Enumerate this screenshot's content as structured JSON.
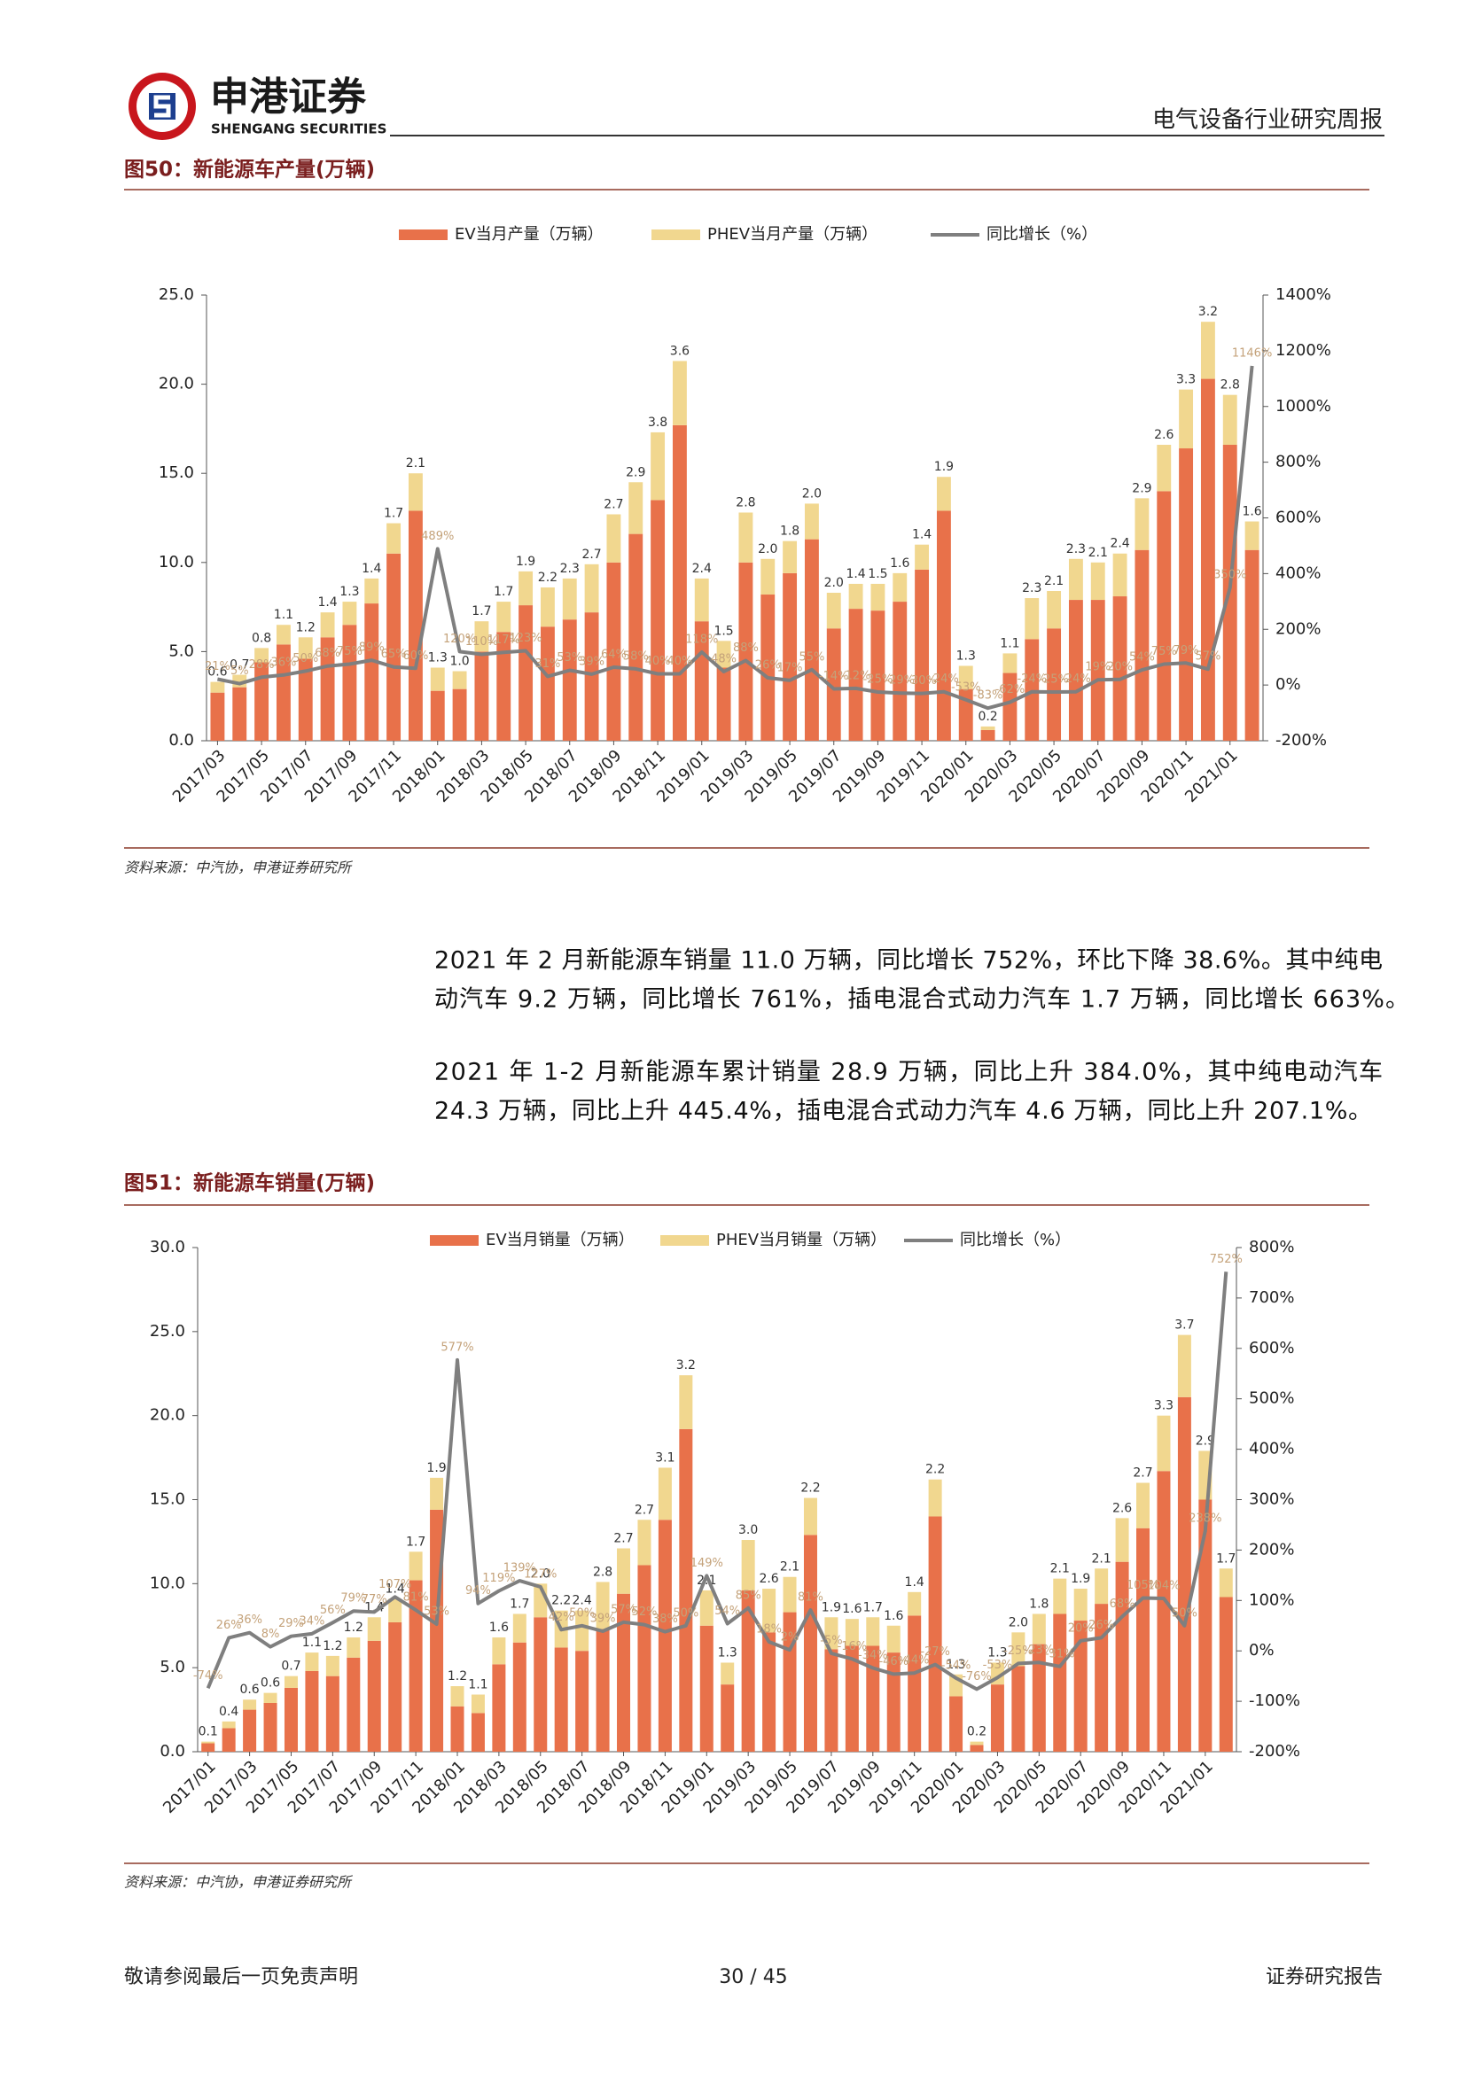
{
  "header": {
    "brand": "申港证券",
    "brand_en": "SHENGANG SECURITIES",
    "report_type": "电气设备行业研究周报"
  },
  "paragraphs": [
    [
      "2021 年 2 月新能源车销量 11.0 万辆，同比增长 752%，环比下降 38.6%。其中纯电",
      "动汽车 9.2 万辆，同比增长 761%，插电混合式动力汽车 1.7 万辆，同比增长 663%。"
    ],
    [
      "2021 年 1-2 月新能源车累计销量 28.9 万辆，同比上升 384.0%，其中纯电动汽车",
      "24.3 万辆，同比上升 445.4%，插电混合式动力汽车 4.6 万辆，同比上升 207.1%。"
    ]
  ],
  "footer": {
    "disclaimer": "敬请参阅最后一页免责声明",
    "page": "30 / 45",
    "doc_type": "证券研究报告"
  },
  "chart_data": [
    {
      "type": "stacked_bar_line",
      "title": "图50：新能源车产量(万辆)",
      "source": "资料来源：中汽协，申港证券研究所",
      "categories": [
        "2017/03",
        null,
        "2017/05",
        null,
        "2017/07",
        null,
        "2017/09",
        null,
        "2017/11",
        null,
        "2018/01",
        null,
        "2018/03",
        null,
        "2018/05",
        null,
        "2018/07",
        null,
        "2018/09",
        null,
        "2018/11",
        null,
        "2019/01",
        null,
        "2019/03",
        null,
        "2019/05",
        null,
        "2019/07",
        null,
        "2019/09",
        null,
        "2019/11",
        null,
        "2020/01",
        null,
        "2020/03",
        null,
        "2020/05",
        null,
        "2020/07",
        null,
        "2020/09",
        null,
        "2020/11",
        null,
        "2021/01",
        null
      ],
      "series": [
        {
          "name": "EV当月产量（万辆）",
          "color": "#e8714a",
          "values": [
            2.7,
            3.0,
            4.4,
            5.4,
            4.6,
            5.8,
            6.5,
            7.7,
            10.5,
            12.9,
            2.8,
            2.9,
            5.0,
            6.1,
            7.6,
            6.4,
            6.8,
            7.2,
            10.0,
            11.6,
            13.5,
            17.7,
            6.7,
            4.1,
            10.0,
            8.2,
            9.4,
            11.3,
            6.3,
            7.4,
            7.3,
            7.8,
            9.6,
            12.9,
            2.9,
            0.6,
            3.8,
            5.7,
            6.3,
            7.9,
            7.9,
            8.1,
            10.7,
            14.0,
            16.4,
            20.3,
            16.6,
            10.7
          ]
        },
        {
          "name": "PHEV当月产量（万辆）",
          "color": "#f1d78f",
          "values": [
            0.6,
            0.7,
            0.8,
            1.1,
            1.2,
            1.4,
            1.3,
            1.4,
            1.7,
            2.1,
            1.3,
            1.0,
            1.7,
            1.7,
            1.9,
            2.2,
            2.3,
            2.7,
            2.7,
            2.9,
            3.8,
            3.6,
            2.4,
            1.5,
            2.8,
            2.0,
            1.8,
            2.0,
            2.0,
            1.4,
            1.5,
            1.6,
            1.4,
            1.9,
            1.3,
            0.2,
            1.1,
            2.3,
            2.1,
            2.3,
            2.1,
            2.4,
            2.9,
            2.6,
            3.3,
            3.2,
            2.8,
            1.6
          ],
          "value_labels": [
            "0.6",
            "0.7",
            "0.8",
            "1.1",
            "1.2",
            "1.4",
            "1.3",
            "1.4",
            "1.7",
            "2.1",
            "1.3",
            "1.0",
            "1.7",
            "1.7",
            "1.9",
            "2.2",
            "2.3",
            "2.7",
            "2.7",
            "2.9",
            "3.8",
            "3.6",
            "2.4",
            "1.5",
            "2.8",
            "2.0",
            "1.8",
            "2.0",
            "2.0",
            "1.4",
            "1.5",
            "1.6",
            "1.4",
            "1.9",
            "1.3",
            "0.2",
            "1.1",
            "2.3",
            "2.1",
            "2.3",
            "2.1",
            "2.4",
            "2.9",
            "2.6",
            "3.3",
            "3.2",
            "2.8",
            "1.6"
          ]
        },
        {
          "name": "同比增长（%）",
          "color": "#7f7f7f",
          "axis": "y2",
          "values": [
            21,
            5,
            28,
            36,
            50,
            68,
            75,
            89,
            65,
            60,
            489,
            120,
            110,
            117,
            123,
            31,
            53,
            39,
            64,
            58,
            40,
            40,
            118,
            48,
            88,
            26,
            17,
            55,
            -14,
            -12,
            -25,
            -29,
            -30,
            -24,
            -53,
            -83,
            -62,
            -24,
            -25,
            -24,
            19,
            20,
            54,
            75,
            79,
            57,
            350,
            1146
          ],
          "value_labels": [
            "21%",
            "5%",
            "28%",
            "36%",
            "50%",
            "68%",
            "75%",
            "89%",
            "65%",
            "60%",
            "489%",
            "120%",
            "110%",
            "117%",
            "123%",
            "31%",
            "53%",
            "39%",
            "64%",
            "58%",
            "40%",
            "40%",
            "118%",
            "48%",
            "88%",
            "26%",
            "17%",
            "55%",
            "-14%",
            "-12%",
            "-25%",
            "-29%",
            "-30%",
            "-24%",
            "-53%",
            "-83%",
            "-62%",
            "-24%",
            "-25%",
            "-24%",
            "19%",
            "20%",
            "54%",
            "75%",
            "79%",
            "57%",
            "350%",
            "1146%"
          ]
        }
      ],
      "ylim": [
        0,
        25
      ],
      "yticks": [
        {
          "value": 0,
          "label": "0.0"
        },
        {
          "value": 5,
          "label": "5.0"
        },
        {
          "value": 10,
          "label": "10.0"
        },
        {
          "value": 15,
          "label": "15.0"
        },
        {
          "value": 20,
          "label": "20.0"
        },
        {
          "value": 25,
          "label": "25.0"
        }
      ],
      "y2lim": [
        -200,
        1400
      ],
      "y2ticks": [
        {
          "value": -200,
          "label": "-200%"
        },
        {
          "value": 0,
          "label": "0%"
        },
        {
          "value": 200,
          "label": "200%"
        },
        {
          "value": 400,
          "label": "400%"
        },
        {
          "value": 600,
          "label": "600%"
        },
        {
          "value": 800,
          "label": "800%"
        },
        {
          "value": 1000,
          "label": "1000%"
        },
        {
          "value": 1200,
          "label": "1200%"
        },
        {
          "value": 1400,
          "label": "1400%"
        }
      ],
      "legend": "top",
      "grid": false
    },
    {
      "type": "stacked_bar_line",
      "title": "图51：新能源车销量(万辆)",
      "source": "资料来源：中汽协，申港证券研究所",
      "categories": [
        "2017/01",
        null,
        "2017/03",
        null,
        "2017/05",
        null,
        "2017/07",
        null,
        "2017/09",
        null,
        "2017/11",
        null,
        "2018/01",
        null,
        "2018/03",
        null,
        "2018/05",
        null,
        "2018/07",
        null,
        "2018/09",
        null,
        "2018/11",
        null,
        "2019/01",
        null,
        "2019/03",
        null,
        "2019/05",
        null,
        "2019/07",
        null,
        "2019/09",
        null,
        "2019/11",
        null,
        "2020/01",
        null,
        "2020/03",
        null,
        "2020/05",
        null,
        "2020/07",
        null,
        "2020/09",
        null,
        "2020/11",
        null,
        "2021/01",
        null
      ],
      "series": [
        {
          "name": "EV当月销量（万辆）",
          "color": "#e8714a",
          "values": [
            0.5,
            1.4,
            2.5,
            2.9,
            3.8,
            4.8,
            4.5,
            5.6,
            6.6,
            7.7,
            10.2,
            14.4,
            2.7,
            2.3,
            5.2,
            6.5,
            8.0,
            6.2,
            6.0,
            7.3,
            9.4,
            11.1,
            13.8,
            19.2,
            7.5,
            4.0,
            9.6,
            7.1,
            8.3,
            12.9,
            6.1,
            6.3,
            6.3,
            5.9,
            8.1,
            14.0,
            3.3,
            0.4,
            4.0,
            5.1,
            6.4,
            8.2,
            7.8,
            8.8,
            11.3,
            13.3,
            16.7,
            21.1,
            15.0,
            9.2
          ]
        },
        {
          "name": "PHEV当月销量（万辆）",
          "color": "#f1d78f",
          "values": [
            0.1,
            0.4,
            0.6,
            0.6,
            0.7,
            1.1,
            1.2,
            1.2,
            1.4,
            1.4,
            1.7,
            1.9,
            1.2,
            1.1,
            1.6,
            1.7,
            2.0,
            2.2,
            2.4,
            2.8,
            2.7,
            2.7,
            3.1,
            3.2,
            2.1,
            1.3,
            3.0,
            2.6,
            2.1,
            2.2,
            1.9,
            1.6,
            1.7,
            1.6,
            1.4,
            2.2,
            1.3,
            0.2,
            1.3,
            2.0,
            1.8,
            2.1,
            1.9,
            2.1,
            2.6,
            2.7,
            3.3,
            3.7,
            2.9,
            1.7
          ],
          "value_labels": [
            "0.1",
            "0.4",
            "0.6",
            "0.6",
            "0.7",
            "1.1",
            "1.2",
            "1.2",
            "1.4",
            "1.4",
            "1.7",
            "1.9",
            "1.2",
            "1.1",
            "1.6",
            "1.7",
            "2.0",
            "2.2",
            "2.4",
            "2.8",
            "2.7",
            "2.7",
            "3.1",
            "3.2",
            "2.1",
            "1.3",
            "3.0",
            "2.6",
            "2.1",
            "2.2",
            "1.9",
            "1.6",
            "1.7",
            "1.6",
            "1.4",
            "2.2",
            "1.3",
            "0.2",
            "1.3",
            "2.0",
            "1.8",
            "2.1",
            "1.9",
            "2.1",
            "2.6",
            "2.7",
            "3.3",
            "3.7",
            "2.9",
            "1.7"
          ]
        },
        {
          "name": "同比增长（%）",
          "color": "#7f7f7f",
          "axis": "y2",
          "values": [
            -74,
            26,
            36,
            8,
            29,
            34,
            56,
            79,
            77,
            107,
            81,
            53,
            577,
            94,
            119,
            139,
            127,
            42,
            50,
            39,
            57,
            52,
            38,
            50,
            149,
            54,
            85,
            18,
            2,
            81,
            -5,
            -16,
            -34,
            -46,
            -44,
            -27,
            -54,
            -76,
            -53,
            -25,
            -23,
            -31,
            20,
            26,
            68,
            105,
            104,
            50,
            238,
            752
          ],
          "value_labels": [
            "-74%",
            "26%",
            "36%",
            "8%",
            "29%",
            "34%",
            "56%",
            "79%",
            "77%",
            "107%",
            "81%",
            "53%",
            "577%",
            "94%",
            "119%",
            "139%",
            "127%",
            "42%",
            "50%",
            "39%",
            "57%",
            "52%",
            "38%",
            "50%",
            "149%",
            "54%",
            "85%",
            "18%",
            "2%",
            "81%",
            "-5%",
            "-16%",
            "-34%",
            "-46%",
            "-44%",
            "-27%",
            "-54%",
            "-76%",
            "-53%",
            "-25%",
            "-23%",
            "-31%",
            "20%",
            "26%",
            "68%",
            "105%",
            "104%",
            "50%",
            "238%",
            "752%"
          ]
        }
      ],
      "ylim": [
        0,
        30
      ],
      "yticks": [
        {
          "value": 0,
          "label": "0.0"
        },
        {
          "value": 5,
          "label": "5.0"
        },
        {
          "value": 10,
          "label": "10.0"
        },
        {
          "value": 15,
          "label": "15.0"
        },
        {
          "value": 20,
          "label": "20.0"
        },
        {
          "value": 25,
          "label": "25.0"
        },
        {
          "value": 30,
          "label": "30.0"
        }
      ],
      "y2lim": [
        -200,
        800
      ],
      "y2ticks": [
        {
          "value": -200,
          "label": "-200%"
        },
        {
          "value": -100,
          "label": "-100%"
        },
        {
          "value": 0,
          "label": "0%"
        },
        {
          "value": 100,
          "label": "100%"
        },
        {
          "value": 200,
          "label": "200%"
        },
        {
          "value": 300,
          "label": "300%"
        },
        {
          "value": 400,
          "label": "400%"
        },
        {
          "value": 500,
          "label": "500%"
        },
        {
          "value": 600,
          "label": "600%"
        },
        {
          "value": 700,
          "label": "700%"
        },
        {
          "value": 800,
          "label": "800%"
        }
      ],
      "legend": "top",
      "grid": false
    }
  ]
}
